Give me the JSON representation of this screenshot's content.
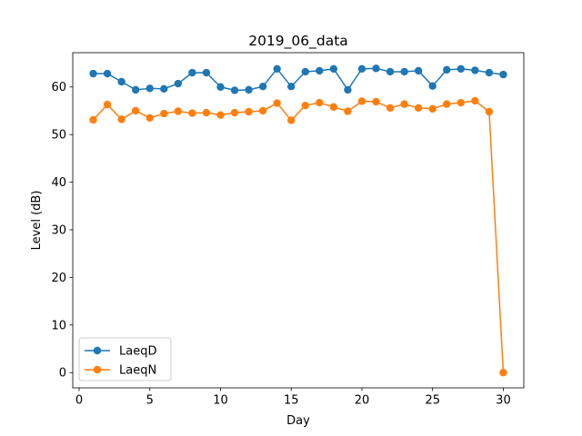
{
  "chart_data": {
    "type": "line",
    "title": "2019_06_data",
    "xlabel": "Day",
    "ylabel": "Level (dB)",
    "xlim": [
      -0.45,
      31.45
    ],
    "ylim": [
      -3.2,
      67.2
    ],
    "x_ticks": [
      0,
      5,
      10,
      15,
      20,
      25,
      30
    ],
    "y_ticks": [
      0,
      10,
      20,
      30,
      40,
      50,
      60
    ],
    "grid": false,
    "legend_position": "lower-left",
    "x": [
      1,
      2,
      3,
      4,
      5,
      6,
      7,
      8,
      9,
      10,
      11,
      12,
      13,
      14,
      15,
      16,
      17,
      18,
      19,
      20,
      21,
      22,
      23,
      24,
      25,
      26,
      27,
      28,
      29,
      30
    ],
    "series": [
      {
        "name": "LaeqD",
        "color": "#1f77b4",
        "values": [
          62.8,
          62.8,
          61.1,
          59.4,
          59.7,
          59.6,
          60.7,
          63.0,
          63.0,
          60.0,
          59.3,
          59.4,
          60.1,
          63.8,
          60.1,
          63.2,
          63.4,
          63.8,
          59.4,
          63.8,
          63.9,
          63.2,
          63.2,
          63.4,
          60.2,
          63.6,
          63.8,
          63.5,
          63.0,
          62.6
        ]
      },
      {
        "name": "LaeqN",
        "color": "#ff7f0e",
        "values": [
          53.1,
          56.3,
          53.2,
          55.0,
          53.5,
          54.4,
          54.9,
          54.5,
          54.6,
          54.1,
          54.6,
          54.8,
          55.0,
          56.6,
          53.0,
          56.1,
          56.7,
          55.8,
          54.9,
          57.0,
          56.9,
          55.6,
          56.4,
          55.6,
          55.4,
          56.4,
          56.7,
          57.1,
          54.8,
          0.0
        ]
      }
    ]
  }
}
